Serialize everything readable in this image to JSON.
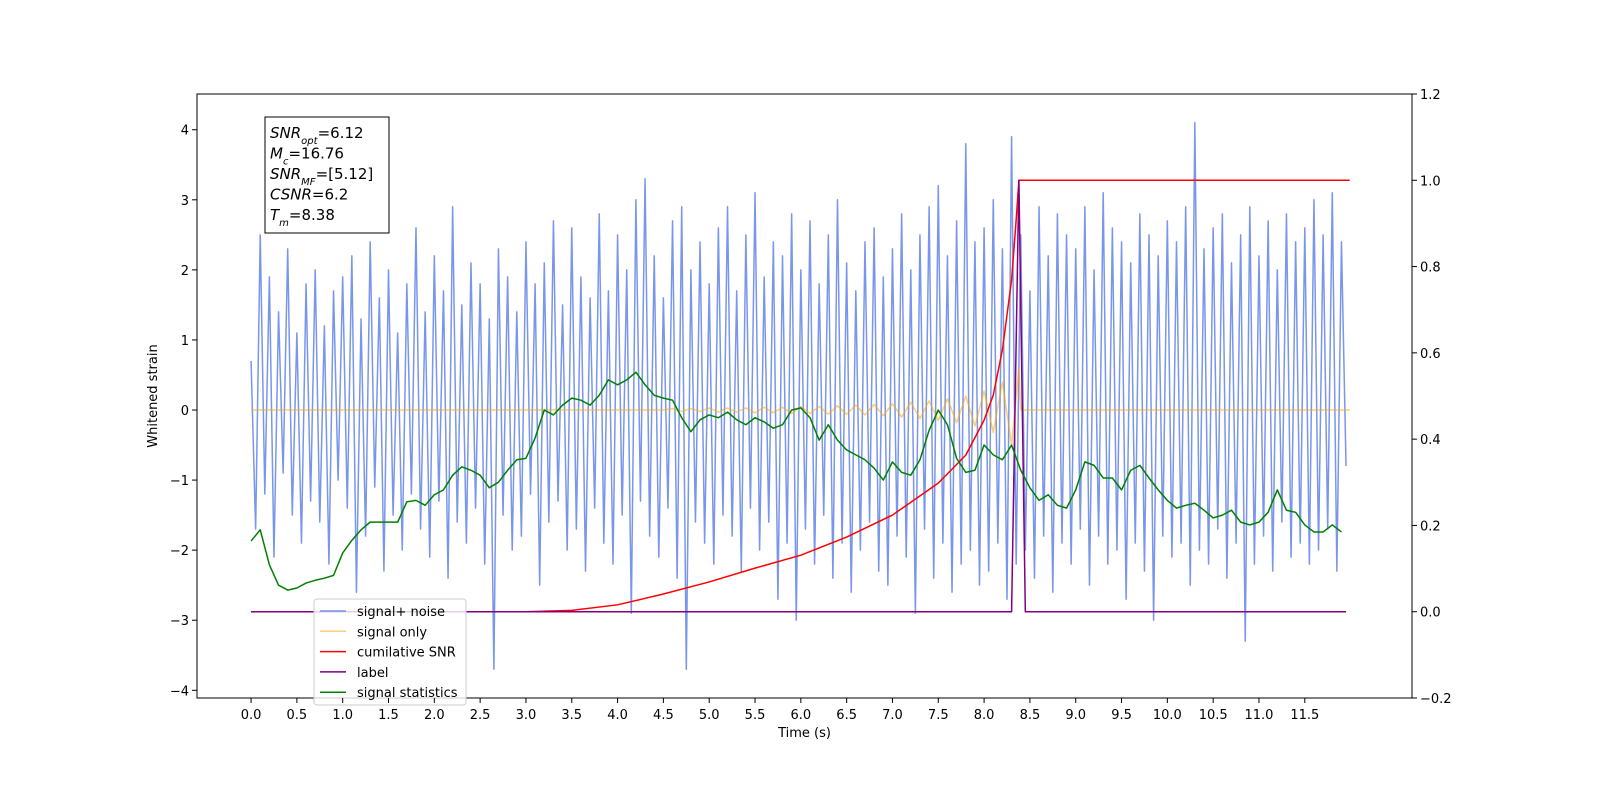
{
  "chart_data": {
    "type": "line",
    "xlabel": "Time (s)",
    "ylabel": "Whitened strain",
    "xlim": [
      -0.59,
      12.67
    ],
    "ylim": [
      -4.11,
      4.51
    ],
    "y2lim": [
      -0.2,
      1.2
    ],
    "xticks": [
      {
        "value": 0,
        "label": "0.0"
      },
      0.5,
      {
        "value": 1,
        "label": "1.0"
      },
      1.5,
      {
        "value": 2,
        "label": "2.0"
      },
      2.5,
      {
        "value": 3,
        "label": "3.0"
      },
      3.5,
      {
        "value": 4,
        "label": "4.0"
      },
      4.5,
      {
        "value": 5,
        "label": "5.0"
      },
      5.5,
      {
        "value": 6,
        "label": "6.0"
      },
      6.5,
      {
        "value": 7,
        "label": "7.0"
      },
      7.5,
      {
        "value": 8,
        "label": "8.0"
      },
      8.5,
      {
        "value": 9,
        "label": "9.0"
      },
      9.5,
      {
        "value": 10,
        "label": "10.0"
      },
      10.5,
      {
        "value": 11,
        "label": "11.0"
      },
      11.5
    ],
    "yticks": [
      {
        "value": -4,
        "label": "−4"
      },
      {
        "value": -3,
        "label": "−3"
      },
      {
        "value": -2,
        "label": "−2"
      },
      {
        "value": -1,
        "label": "−1"
      },
      0,
      1,
      2,
      3,
      4
    ],
    "y2ticks": [
      {
        "value": -0.2,
        "label": "−0.2"
      },
      {
        "value": 0,
        "label": "0.0"
      },
      0.2,
      0.4,
      0.6,
      0.8,
      {
        "value": 1,
        "label": "1.0"
      },
      {
        "value": 1.2,
        "label": "1.2"
      }
    ],
    "annotations": [
      {
        "base": "SNR",
        "sub": "opt",
        "rest": "=6.12"
      },
      {
        "base": "M",
        "sub": "c",
        "rest": "=16.76"
      },
      {
        "base": "SNR",
        "sub": "MF",
        "rest": "=[5.12]"
      },
      {
        "base": "CSNR",
        "rest": "=6.2"
      },
      {
        "base": "T",
        "sub": "m",
        "rest": "=8.38"
      }
    ],
    "series": [
      {
        "name": "signal+ noise",
        "color": "#4169e1",
        "alpha": 0.7,
        "axis": "y",
        "x": [
          0,
          0.05,
          0.1,
          0.15,
          0.2,
          0.25,
          0.3,
          0.35,
          0.4,
          0.45,
          0.5,
          0.55,
          0.6,
          0.65,
          0.7,
          0.75,
          0.8,
          0.85,
          0.9,
          0.95,
          1,
          1.05,
          1.1,
          1.15,
          1.2,
          1.25,
          1.3,
          1.35,
          1.4,
          1.45,
          1.5,
          1.55,
          1.6,
          1.65,
          1.7,
          1.75,
          1.8,
          1.85,
          1.9,
          1.95,
          2,
          2.05,
          2.1,
          2.15,
          2.2,
          2.25,
          2.3,
          2.35,
          2.4,
          2.45,
          2.5,
          2.55,
          2.6,
          2.65,
          2.7,
          2.75,
          2.8,
          2.85,
          2.9,
          2.95,
          3,
          3.05,
          3.1,
          3.15,
          3.2,
          3.25,
          3.3,
          3.35,
          3.4,
          3.45,
          3.5,
          3.55,
          3.6,
          3.65,
          3.7,
          3.75,
          3.8,
          3.85,
          3.9,
          3.95,
          4,
          4.05,
          4.1,
          4.15,
          4.2,
          4.25,
          4.3,
          4.35,
          4.4,
          4.45,
          4.5,
          4.55,
          4.6,
          4.65,
          4.7,
          4.75,
          4.8,
          4.85,
          4.9,
          4.95,
          5,
          5.05,
          5.1,
          5.15,
          5.2,
          5.25,
          5.3,
          5.35,
          5.4,
          5.45,
          5.5,
          5.55,
          5.6,
          5.65,
          5.7,
          5.75,
          5.8,
          5.85,
          5.9,
          5.95,
          6,
          6.05,
          6.1,
          6.15,
          6.2,
          6.25,
          6.3,
          6.35,
          6.4,
          6.45,
          6.5,
          6.55,
          6.6,
          6.65,
          6.7,
          6.75,
          6.8,
          6.85,
          6.9,
          6.95,
          7,
          7.05,
          7.1,
          7.15,
          7.2,
          7.25,
          7.3,
          7.35,
          7.4,
          7.45,
          7.5,
          7.55,
          7.6,
          7.65,
          7.7,
          7.75,
          7.8,
          7.85,
          7.9,
          7.95,
          8,
          8.05,
          8.1,
          8.15,
          8.2,
          8.25,
          8.3,
          8.35,
          8.4,
          8.45,
          8.5,
          8.55,
          8.6,
          8.65,
          8.7,
          8.75,
          8.8,
          8.85,
          8.9,
          8.95,
          9,
          9.05,
          9.1,
          9.15,
          9.2,
          9.25,
          9.3,
          9.35,
          9.4,
          9.45,
          9.5,
          9.55,
          9.6,
          9.65,
          9.7,
          9.75,
          9.8,
          9.85,
          9.9,
          9.95,
          10,
          10.05,
          10.1,
          10.15,
          10.2,
          10.25,
          10.3,
          10.35,
          10.4,
          10.45,
          10.5,
          10.55,
          10.6,
          10.65,
          10.7,
          10.75,
          10.8,
          10.85,
          10.9,
          10.95,
          11,
          11.05,
          11.1,
          11.15,
          11.2,
          11.25,
          11.3,
          11.35,
          11.4,
          11.45,
          11.5,
          11.55,
          11.6,
          11.65,
          11.7,
          11.75,
          11.8,
          11.85,
          11.9,
          11.95
        ],
        "values": [
          0.7,
          -1.7,
          2.5,
          -1.2,
          1.9,
          -2.1,
          1.4,
          -0.9,
          2.3,
          -1.5,
          1.1,
          -1.9,
          1.8,
          -1.3,
          2.0,
          -1.6,
          1.2,
          -2.2,
          1.7,
          -1.0,
          1.9,
          -1.4,
          2.2,
          -2.6,
          1.3,
          -1.8,
          2.4,
          -1.1,
          1.6,
          -2.3,
          2.0,
          -1.5,
          1.1,
          -2.0,
          1.8,
          -1.2,
          2.6,
          -1.7,
          1.4,
          -2.1,
          2.2,
          -1.3,
          1.7,
          -2.4,
          2.9,
          -1.6,
          1.5,
          -1.9,
          2.1,
          -1.4,
          1.8,
          -2.2,
          1.3,
          -3.7,
          2.3,
          -1.5,
          1.9,
          -2.0,
          1.4,
          -1.8,
          2.4,
          -1.2,
          1.8,
          -2.5,
          2.1,
          -1.6,
          2.7,
          -1.3,
          1.5,
          -2.0,
          2.6,
          -1.7,
          1.9,
          -2.3,
          1.6,
          -1.4,
          2.8,
          -1.9,
          1.7,
          -2.2,
          2.5,
          -1.5,
          2.0,
          -2.9,
          3.0,
          -1.3,
          3.3,
          -1.8,
          2.2,
          -2.1,
          1.6,
          -1.4,
          2.7,
          -2.4,
          2.9,
          -3.7,
          2.0,
          -1.6,
          2.4,
          -1.9,
          1.8,
          -2.2,
          2.6,
          -1.5,
          2.9,
          -1.8,
          1.7,
          -2.3,
          2.5,
          -1.4,
          3.1,
          -2.0,
          1.9,
          -1.6,
          2.4,
          -2.7,
          2.2,
          -1.9,
          2.8,
          -3.0,
          2.0,
          -1.7,
          2.7,
          -2.2,
          1.8,
          -1.5,
          2.5,
          -2.4,
          3.0,
          -1.9,
          2.1,
          -2.6,
          1.7,
          -2.0,
          2.4,
          -1.6,
          2.6,
          -2.3,
          1.9,
          -2.5,
          2.3,
          -1.8,
          2.8,
          -2.1,
          2.0,
          -2.9,
          2.5,
          -1.7,
          2.9,
          -2.4,
          3.2,
          -1.9,
          2.2,
          -2.6,
          2.7,
          -2.2,
          3.8,
          -2.0,
          2.4,
          -2.5,
          2.6,
          -2.3,
          3.0,
          -1.9,
          2.3,
          -2.7,
          3.9,
          -2.2,
          2.5,
          -2.0,
          1.7,
          -2.4,
          2.9,
          -1.8,
          2.2,
          -2.6,
          2.8,
          -1.9,
          2.5,
          -2.2,
          2.3,
          -1.7,
          2.9,
          -2.5,
          2.0,
          -1.8,
          3.1,
          -2.2,
          2.6,
          -2.0,
          2.4,
          -2.7,
          2.1,
          -1.9,
          2.8,
          -2.3,
          2.5,
          -3.0,
          2.2,
          -1.8,
          2.7,
          -2.1,
          2.4,
          -1.9,
          2.9,
          -2.5,
          4.1,
          -2.0,
          2.3,
          -2.2,
          2.6,
          -1.7,
          2.8,
          -2.4,
          2.1,
          -1.9,
          2.5,
          -3.3,
          2.9,
          -2.2,
          2.2,
          -1.8,
          2.7,
          -2.3,
          2.0,
          -1.6,
          2.8,
          -2.1,
          2.4,
          -1.9,
          2.6,
          -2.2,
          3.0,
          -2.0,
          2.5,
          -1.7,
          3.1,
          -2.3,
          2.4,
          -0.8
        ]
      },
      {
        "name": "signal only",
        "color": "#ffa500",
        "alpha": 0.55,
        "axis": "y",
        "x": [
          0,
          4.5,
          4.6,
          4.7,
          4.8,
          4.9,
          5.0,
          5.1,
          5.2,
          5.3,
          5.4,
          5.5,
          5.6,
          5.7,
          5.8,
          5.9,
          6.0,
          6.1,
          6.2,
          6.3,
          6.4,
          6.5,
          6.6,
          6.7,
          6.8,
          6.9,
          7.0,
          7.1,
          7.2,
          7.3,
          7.4,
          7.5,
          7.6,
          7.7,
          7.8,
          7.9,
          8.0,
          8.1,
          8.2,
          8.3,
          8.38,
          8.4,
          11.99
        ],
        "values": [
          0,
          0,
          0.02,
          -0.02,
          0.02,
          -0.02,
          0.03,
          -0.03,
          0.03,
          -0.03,
          0.03,
          -0.04,
          0.04,
          -0.04,
          0.04,
          -0.05,
          0.05,
          -0.05,
          0.05,
          -0.06,
          0.06,
          -0.06,
          0.07,
          -0.07,
          0.08,
          -0.08,
          0.09,
          -0.1,
          0.11,
          -0.12,
          0.13,
          -0.15,
          0.16,
          -0.18,
          0.2,
          -0.23,
          0.27,
          -0.32,
          0.4,
          -0.5,
          0.6,
          0,
          0
        ]
      },
      {
        "name": "cumilative SNR",
        "color": "#ff0000",
        "alpha": 1,
        "axis": "y2",
        "x": [
          0,
          3.0,
          3.5,
          4.0,
          4.5,
          5.0,
          5.5,
          6.0,
          6.5,
          7.0,
          7.5,
          7.8,
          8.0,
          8.1,
          8.2,
          8.3,
          8.35,
          8.38,
          11.99
        ],
        "values": [
          0,
          0,
          0.003,
          0.016,
          0.041,
          0.069,
          0.101,
          0.131,
          0.173,
          0.224,
          0.298,
          0.363,
          0.444,
          0.502,
          0.607,
          0.769,
          0.908,
          1.0,
          1.0
        ]
      },
      {
        "name": "label",
        "color": "#800080",
        "alpha": 1,
        "axis": "y2",
        "x": [
          0,
          8.3,
          8.38,
          8.45,
          11.95
        ],
        "values": [
          0,
          0,
          1,
          0,
          0
        ]
      },
      {
        "name": "signal statistics",
        "color": "#008000",
        "alpha": 1,
        "axis": "y",
        "x": [
          0,
          0.1,
          0.2,
          0.3,
          0.4,
          0.5,
          0.6,
          0.7,
          0.8,
          0.9,
          1.0,
          1.1,
          1.2,
          1.3,
          1.4,
          1.5,
          1.6,
          1.7,
          1.8,
          1.9,
          2.0,
          2.1,
          2.2,
          2.3,
          2.4,
          2.5,
          2.6,
          2.7,
          2.8,
          2.9,
          3.0,
          3.1,
          3.2,
          3.3,
          3.4,
          3.5,
          3.6,
          3.7,
          3.8,
          3.9,
          4.0,
          4.1,
          4.2,
          4.3,
          4.4,
          4.5,
          4.6,
          4.7,
          4.8,
          4.9,
          5.0,
          5.1,
          5.2,
          5.3,
          5.4,
          5.5,
          5.6,
          5.7,
          5.8,
          5.9,
          6.0,
          6.1,
          6.2,
          6.3,
          6.4,
          6.5,
          6.6,
          6.7,
          6.8,
          6.9,
          7.0,
          7.1,
          7.2,
          7.3,
          7.4,
          7.5,
          7.6,
          7.7,
          7.8,
          7.9,
          8.0,
          8.1,
          8.2,
          8.3,
          8.4,
          8.5,
          8.6,
          8.7,
          8.8,
          8.9,
          9.0,
          9.1,
          9.2,
          9.3,
          9.4,
          9.5,
          9.6,
          9.7,
          9.8,
          9.9,
          10.0,
          10.1,
          10.2,
          10.3,
          10.4,
          10.5,
          10.6,
          10.7,
          10.8,
          10.9,
          11.0,
          11.1,
          11.2,
          11.3,
          11.4,
          11.5,
          11.6,
          11.7,
          11.8,
          11.9
        ],
        "values": [
          -1.87,
          -1.71,
          -2.21,
          -2.5,
          -2.57,
          -2.54,
          -2.47,
          -2.43,
          -2.4,
          -2.36,
          -2.04,
          -1.86,
          -1.71,
          -1.6,
          -1.6,
          -1.6,
          -1.6,
          -1.31,
          -1.29,
          -1.36,
          -1.21,
          -1.14,
          -0.93,
          -0.81,
          -0.86,
          -0.93,
          -1.11,
          -1.03,
          -0.86,
          -0.71,
          -0.69,
          -0.4,
          0,
          -0.07,
          0.07,
          0.17,
          0.14,
          0.07,
          0.21,
          0.43,
          0.36,
          0.43,
          0.54,
          0.36,
          0.21,
          0.17,
          0.14,
          -0.11,
          -0.31,
          -0.14,
          -0.07,
          -0.11,
          -0.03,
          -0.14,
          -0.21,
          -0.11,
          -0.17,
          -0.26,
          -0.21,
          0,
          0.03,
          -0.11,
          -0.43,
          -0.21,
          -0.43,
          -0.57,
          -0.64,
          -0.71,
          -0.83,
          -1,
          -0.74,
          -0.89,
          -0.93,
          -0.71,
          -0.29,
          0,
          -0.21,
          -0.69,
          -0.89,
          -0.86,
          -0.5,
          -0.64,
          -0.71,
          -0.5,
          -0.86,
          -1.11,
          -1.29,
          -1.21,
          -1.36,
          -1.4,
          -1.14,
          -0.74,
          -0.79,
          -0.97,
          -0.97,
          -1.14,
          -0.86,
          -0.79,
          -0.97,
          -1.14,
          -1.29,
          -1.4,
          -1.36,
          -1.33,
          -1.43,
          -1.54,
          -1.5,
          -1.43,
          -1.6,
          -1.64,
          -1.6,
          -1.46,
          -1.14,
          -1.43,
          -1.46,
          -1.64,
          -1.74,
          -1.74,
          -1.64,
          -1.74
        ]
      }
    ]
  }
}
